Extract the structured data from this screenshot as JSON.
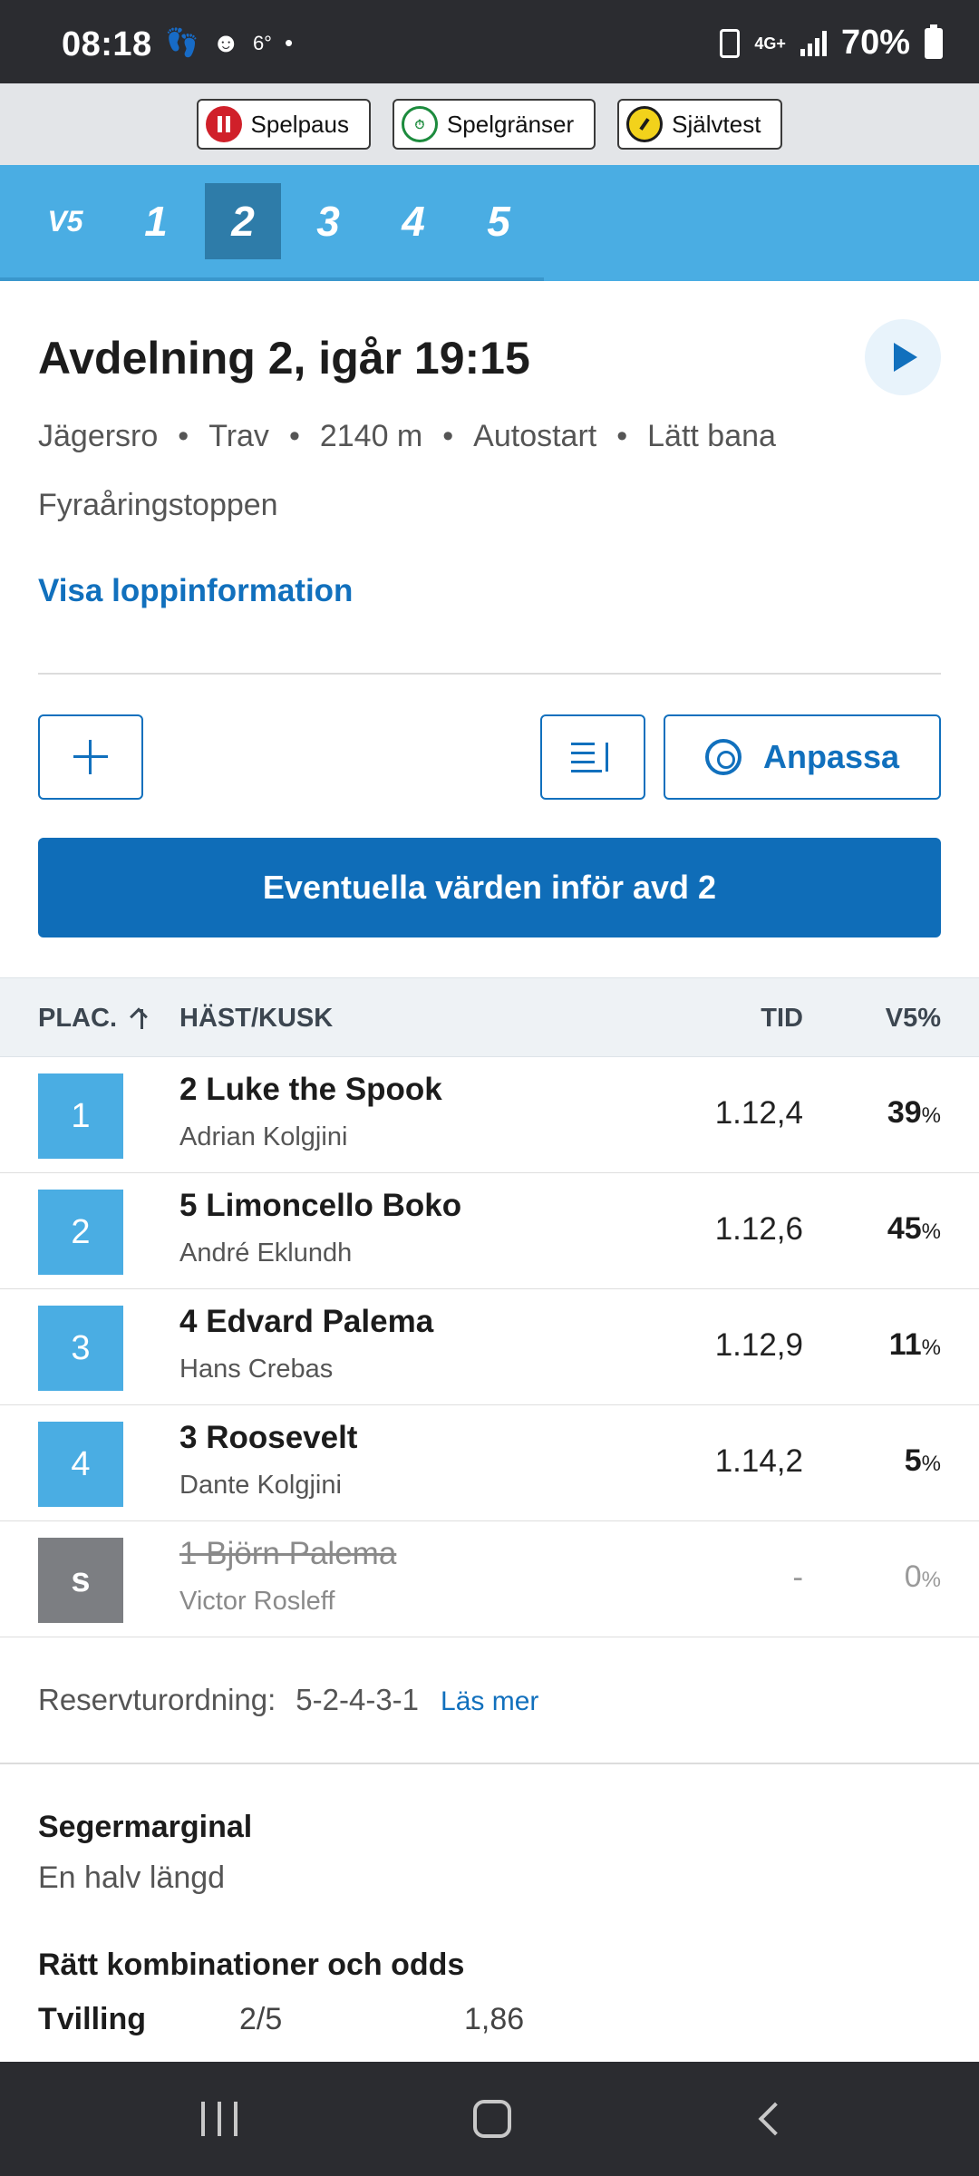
{
  "status_bar": {
    "time": "08:18",
    "temperature": "6°",
    "network": "4G+",
    "battery": "70%"
  },
  "responsible_gaming": [
    {
      "label": "Spelpaus",
      "icon": "pause-icon"
    },
    {
      "label": "Spelgränser",
      "icon": "timer-icon"
    },
    {
      "label": "Självtest",
      "icon": "gauge-icon"
    }
  ],
  "tabs": {
    "game": "V5",
    "races": [
      "1",
      "2",
      "3",
      "4",
      "5"
    ],
    "active": "2"
  },
  "race": {
    "title": "Avdelning 2, igår 19:15",
    "track": "Jägersro",
    "type": "Trav",
    "distance": "2140 m",
    "start": "Autostart",
    "condition": "Lätt bana",
    "name": "Fyraåringstoppen",
    "info_link": "Visa loppinformation"
  },
  "actions": {
    "customize_label": "Anpassa",
    "values_button": "Eventuella värden inför avd 2"
  },
  "table": {
    "headers": {
      "place": "PLAC.",
      "horse": "HÄST/KUSK",
      "time": "TID",
      "percent": "V5%"
    },
    "rows": [
      {
        "place": "1",
        "horse": "2 Luke the Spook",
        "driver": "Adrian Kolgjini",
        "time": "1.12,4",
        "pct": "39",
        "unit": "%"
      },
      {
        "place": "2",
        "horse": "5 Limoncello Boko",
        "driver": "André Eklundh",
        "time": "1.12,6",
        "pct": "45",
        "unit": "%"
      },
      {
        "place": "3",
        "horse": "4 Edvard Palema",
        "driver": "Hans Crebas",
        "time": "1.12,9",
        "pct": "11",
        "unit": "%"
      },
      {
        "place": "4",
        "horse": "3 Roosevelt",
        "driver": "Dante Kolgjini",
        "time": "1.14,2",
        "pct": "5",
        "unit": "%"
      },
      {
        "place": "s",
        "horse": "1 Björn Palema",
        "driver": "Victor Rosleff",
        "time": "-",
        "pct": "0",
        "unit": "%"
      }
    ]
  },
  "reserve": {
    "label": "Reservturordning:",
    "order": "5-2-4-3-1",
    "link": "Läs mer"
  },
  "margin": {
    "title": "Segermarginal",
    "value": "En halv längd"
  },
  "combos": {
    "title": "Rätt kombinationer och odds",
    "type": "Tvilling",
    "combination": "2/5",
    "odds": "1,86"
  }
}
